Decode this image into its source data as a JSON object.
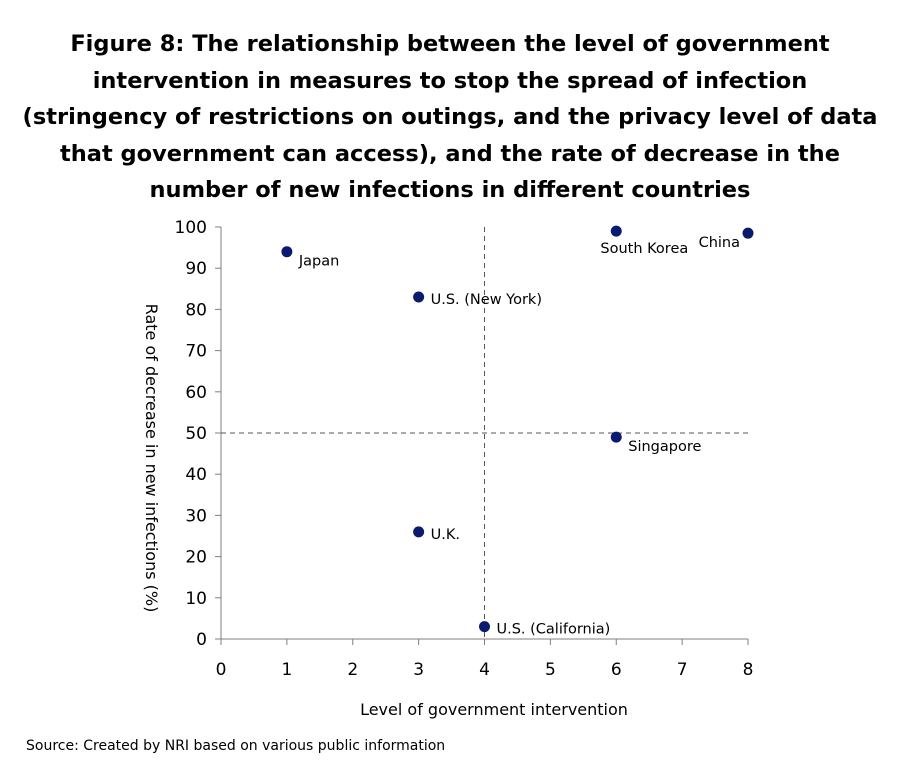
{
  "chart_data": {
    "type": "scatter",
    "title": "Figure 8: The relationship between the level of government intervention in measures to stop the spread of infection (stringency of restrictions on outings, and the privacy level of data that government can access), and the rate of decrease in the number of new infections in different countries",
    "xlabel": "Level of government intervention",
    "ylabel": "Rate of decrease in new infections (%)",
    "xlim": [
      0,
      8
    ],
    "ylim": [
      0,
      100
    ],
    "x_ticks": [
      0,
      1,
      2,
      3,
      4,
      5,
      6,
      7,
      8
    ],
    "y_ticks": [
      0,
      10,
      20,
      30,
      40,
      50,
      60,
      70,
      80,
      90,
      100
    ],
    "grid": false,
    "reference_lines": {
      "x": 4,
      "y": 50,
      "style": "dashed"
    },
    "point_color": "#0a1a6e",
    "points": [
      {
        "label": "Japan",
        "x": 1,
        "y": 94,
        "label_pos": "right"
      },
      {
        "label": "U.S. (New York)",
        "x": 3,
        "y": 83,
        "label_pos": "right"
      },
      {
        "label": "U.K.",
        "x": 3,
        "y": 26,
        "label_pos": "right"
      },
      {
        "label": "U.S. (California)",
        "x": 4,
        "y": 3,
        "label_pos": "right"
      },
      {
        "label": "South Korea",
        "x": 6,
        "y": 99,
        "label_pos": "below-left"
      },
      {
        "label": "Singapore",
        "x": 6,
        "y": 49,
        "label_pos": "right"
      },
      {
        "label": "China",
        "x": 8,
        "y": 98.5,
        "label_pos": "left"
      }
    ]
  },
  "source": "Source: Created by NRI based on various public information"
}
